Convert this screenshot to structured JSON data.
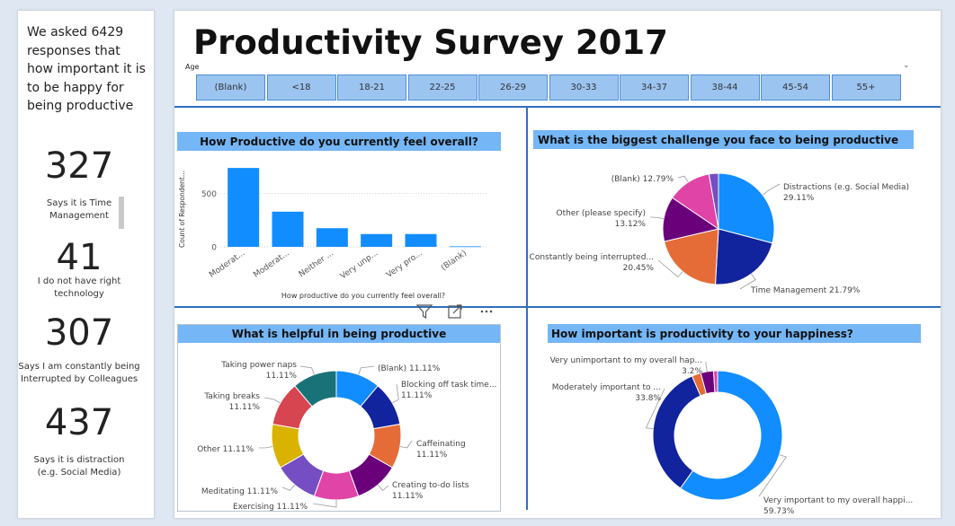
{
  "left_panel": {
    "intro_lines": [
      "We asked 6429",
      "responses that",
      "how important it is",
      "to be happy for",
      "being productive"
    ],
    "kpis": [
      {
        "value": "327",
        "label_lines": [
          "Says it is Time",
          "Management"
        ]
      },
      {
        "value": "41",
        "label_lines": [
          "I do not have right",
          "technology"
        ]
      },
      {
        "value": "307",
        "label_lines": [
          "Says I am constantly being",
          "Interrupted by Colleagues"
        ]
      },
      {
        "value": "437",
        "label_lines": [
          "Says it is distraction",
          "(e.g. Social Media)"
        ]
      }
    ]
  },
  "header": {
    "title": "Productivity Survey 2017",
    "age_label": "Age",
    "age_options": [
      "(Blank)",
      "<18",
      "18-21",
      "22-25",
      "26-29",
      "30-33",
      "34-37",
      "38-44",
      "45-54",
      "55+"
    ]
  },
  "icons": {
    "filter": "filter-icon",
    "focus": "focus-mode-icon",
    "more": "more-options-icon",
    "dropdown": "chevron-down-icon"
  },
  "colors": {
    "accent": "#118dff",
    "title_bar": "#74b6f6",
    "divider": "#2f6fbf"
  },
  "chart_data": [
    {
      "type": "bar",
      "title": "How Productive do you currently feel overall?",
      "xlabel": "How productive do you currently feel overall?",
      "ylabel": "Count of Respondent...",
      "categories": [
        "Moderat...",
        "Moderat...",
        "Neither ...",
        "Very unp...",
        "Very pro...",
        "(Blank)"
      ],
      "values": [
        740,
        330,
        175,
        120,
        120,
        5
      ],
      "yticks": [
        0,
        500
      ],
      "ylim": [
        0,
        800
      ],
      "grid": true,
      "color": "#118dff"
    },
    {
      "type": "pie",
      "title": "What is the biggest challenge you face to being productive",
      "slices": [
        {
          "label": "Distractions (e.g. Social Media)",
          "pct": "29.11%",
          "value": 29.11,
          "color": "#118dff"
        },
        {
          "label": "Time Management",
          "pct": "21.79%",
          "value": 21.79,
          "color": "#12239e"
        },
        {
          "label": "Constantly being interrupted...",
          "pct": "20.45%",
          "value": 20.45,
          "color": "#e66c37"
        },
        {
          "label": "Other (please specify)",
          "pct": "13.12%",
          "value": 13.12,
          "color": "#6b007b"
        },
        {
          "label": "(Blank)",
          "pct": "12.79%",
          "value": 12.79,
          "color": "#e044a7"
        },
        {
          "label": "",
          "pct": "",
          "value": 2.74,
          "color": "#744ec2"
        }
      ]
    },
    {
      "type": "donut",
      "title": "What is helpful in being productive",
      "slices": [
        {
          "label": "(Blank)",
          "pct": "11.11%",
          "value": 11.11,
          "color": "#118dff"
        },
        {
          "label": "Blocking off task time...",
          "pct": "11.11%",
          "value": 11.11,
          "color": "#12239e"
        },
        {
          "label": "Caffeinating",
          "pct": "11.11%",
          "value": 11.11,
          "color": "#e66c37"
        },
        {
          "label": "Creating to-do lists",
          "pct": "11.11%",
          "value": 11.11,
          "color": "#6b007b"
        },
        {
          "label": "Exercising",
          "pct": "11.11%",
          "value": 11.11,
          "color": "#e044a7"
        },
        {
          "label": "Meditating",
          "pct": "11.11%",
          "value": 11.11,
          "color": "#744ec2"
        },
        {
          "label": "Other",
          "pct": "11.11%",
          "value": 11.11,
          "color": "#d9b300"
        },
        {
          "label": "Taking breaks",
          "pct": "11.11%",
          "value": 11.11,
          "color": "#d64550"
        },
        {
          "label": "Taking power naps",
          "pct": "11.11%",
          "value": 11.11,
          "color": "#197278"
        }
      ]
    },
    {
      "type": "donut",
      "title": "How important is productivity to your happiness?",
      "slices": [
        {
          "label": "Very important to my overall happi...",
          "pct": "59.73%",
          "value": 59.73,
          "color": "#118dff"
        },
        {
          "label": "Moderately important to ...",
          "pct": "33.8%",
          "value": 33.8,
          "color": "#12239e"
        },
        {
          "label": "",
          "pct": "",
          "value": 2.27,
          "color": "#e66c37"
        },
        {
          "label": "Very unimportant to my overall hap...",
          "pct": "3.2%",
          "value": 3.2,
          "color": "#6b007b"
        },
        {
          "label": "",
          "pct": "",
          "value": 1.0,
          "color": "#e044a7"
        }
      ]
    }
  ]
}
